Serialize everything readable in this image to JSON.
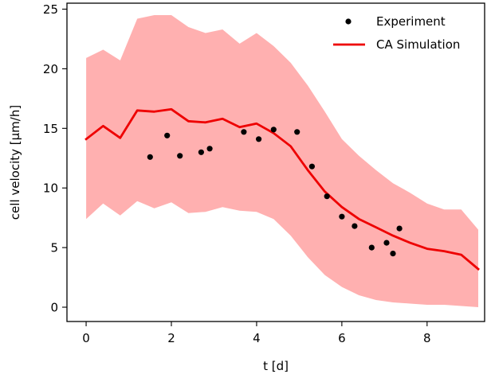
{
  "chart_data": {
    "type": "line",
    "title": "",
    "xlabel": "t [d]",
    "ylabel": "cell velocity [μm/h]",
    "xlim": [
      -0.45,
      9.35
    ],
    "ylim": [
      -1.2,
      25.5
    ],
    "xticks": [
      0,
      2,
      4,
      6,
      8
    ],
    "yticks": [
      0,
      5,
      10,
      15,
      20,
      25
    ],
    "grid": false,
    "legend": {
      "position": "top-right",
      "entries": [
        "Experiment",
        "CA Simulation"
      ]
    },
    "series": [
      {
        "name": "CA Simulation",
        "kind": "line",
        "color": "#ee0000",
        "x": [
          0,
          0.4,
          0.8,
          1.2,
          1.6,
          2.0,
          2.4,
          2.8,
          3.2,
          3.6,
          4.0,
          4.4,
          4.8,
          5.2,
          5.6,
          6.0,
          6.4,
          6.8,
          7.2,
          7.6,
          8.0,
          8.4,
          8.8,
          9.2
        ],
        "y": [
          14.1,
          15.2,
          14.2,
          16.5,
          16.4,
          16.6,
          15.6,
          15.5,
          15.8,
          15.1,
          15.4,
          14.6,
          13.5,
          11.5,
          9.7,
          8.4,
          7.4,
          6.7,
          6.0,
          5.4,
          4.9,
          4.7,
          4.4,
          3.2
        ]
      },
      {
        "name": "CA Simulation band",
        "kind": "band",
        "color": "#ffb0b0",
        "x": [
          0,
          0.4,
          0.8,
          1.2,
          1.6,
          2.0,
          2.4,
          2.8,
          3.2,
          3.6,
          4.0,
          4.4,
          4.8,
          5.2,
          5.6,
          6.0,
          6.4,
          6.8,
          7.2,
          7.6,
          8.0,
          8.4,
          8.8,
          9.2
        ],
        "upper": [
          20.9,
          21.6,
          20.7,
          24.2,
          24.5,
          24.5,
          23.5,
          23.0,
          23.3,
          22.1,
          23.0,
          21.9,
          20.5,
          18.6,
          16.4,
          14.1,
          12.7,
          11.5,
          10.4,
          9.6,
          8.7,
          8.2,
          8.2,
          6.5
        ],
        "lower": [
          7.4,
          8.7,
          7.7,
          8.9,
          8.3,
          8.8,
          7.9,
          8.0,
          8.4,
          8.1,
          8.0,
          7.4,
          6.0,
          4.2,
          2.7,
          1.7,
          1.0,
          0.6,
          0.4,
          0.3,
          0.2,
          0.2,
          0.1,
          0.0
        ]
      },
      {
        "name": "Experiment",
        "kind": "scatter",
        "color": "#000000",
        "x": [
          1.5,
          1.9,
          2.2,
          2.7,
          2.9,
          3.7,
          4.05,
          4.4,
          4.95,
          5.3,
          5.65,
          6.0,
          6.3,
          6.7,
          7.05,
          7.2,
          7.35
        ],
        "y": [
          12.6,
          14.4,
          12.7,
          13.0,
          13.3,
          14.7,
          14.1,
          14.9,
          14.7,
          11.8,
          9.3,
          7.6,
          6.8,
          5.0,
          5.4,
          4.5,
          6.6
        ]
      }
    ]
  }
}
